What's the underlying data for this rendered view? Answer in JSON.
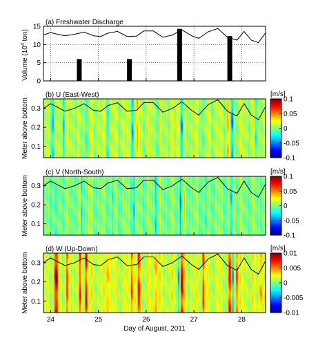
{
  "figure": {
    "xlabel": "Day of August, 2011",
    "xticks": [
      "24",
      "25",
      "26",
      "27",
      "28"
    ],
    "xlim": [
      23.85,
      28.5
    ]
  },
  "chart_data": [
    {
      "type": "bar",
      "title": "(a) Freshwater Discharge",
      "ylabel": "Volume (10",
      "ylabel_sup": "4",
      "ylabel_tail": " ton)",
      "ylim": [
        0,
        15
      ],
      "yticks": [
        "0",
        "5",
        "10",
        "15"
      ],
      "grid": true,
      "bars": [
        {
          "x": 24.6,
          "value": 6
        },
        {
          "x": 25.65,
          "value": 6
        },
        {
          "x": 26.7,
          "value": 14.3
        },
        {
          "x": 27.75,
          "value": 12.3
        }
      ],
      "overlay_line": {
        "x": [
          23.85,
          24.0,
          24.15,
          24.3,
          24.5,
          24.7,
          24.9,
          25.05,
          25.2,
          25.4,
          25.6,
          25.8,
          25.95,
          26.15,
          26.35,
          26.55,
          26.75,
          26.95,
          27.1,
          27.3,
          27.5,
          27.7,
          27.9,
          28.05,
          28.2,
          28.35,
          28.5
        ],
        "y": [
          12.6,
          13.3,
          12.8,
          12.4,
          12.8,
          13.4,
          12.4,
          12.2,
          13.1,
          13.6,
          12.2,
          12.3,
          13.7,
          13.7,
          12.0,
          12.6,
          14.0,
          12.4,
          11.7,
          13.5,
          14.4,
          12.0,
          11.2,
          13.6,
          11.2,
          10.5,
          13.2
        ]
      }
    },
    {
      "type": "heatmap",
      "title": "(b) U (East-West)",
      "ylabel": "Meter above bottom",
      "ylim": [
        0.04,
        0.35
      ],
      "yticks": [
        "0.1",
        "0.2",
        "0.3"
      ],
      "colorbar": {
        "unit": "[m/s]",
        "ticks": [
          "0.1",
          "0.05",
          "0",
          "-0.05",
          "-0.1"
        ],
        "range": [
          -0.1,
          0.1
        ]
      },
      "base": 0.01,
      "events": [
        {
          "x": 24.05,
          "a": -0.06,
          "w": 0.025
        },
        {
          "x": 24.28,
          "a": -0.045,
          "w": 0.02
        },
        {
          "x": 24.62,
          "a": -0.03,
          "w": 0.015
        },
        {
          "x": 24.75,
          "a": -0.04,
          "w": 0.02
        },
        {
          "x": 25.2,
          "a": -0.035,
          "w": 0.02
        },
        {
          "x": 25.72,
          "a": -0.06,
          "w": 0.02
        },
        {
          "x": 25.82,
          "a": 0.05,
          "w": 0.015
        },
        {
          "x": 26.25,
          "a": -0.03,
          "w": 0.02
        },
        {
          "x": 26.65,
          "a": 0.03,
          "w": 0.02
        },
        {
          "x": 26.75,
          "a": -0.07,
          "w": 0.025
        },
        {
          "x": 27.2,
          "a": -0.03,
          "w": 0.02
        },
        {
          "x": 27.7,
          "a": 0.04,
          "w": 0.02
        },
        {
          "x": 27.8,
          "a": -0.08,
          "w": 0.025
        },
        {
          "x": 28.3,
          "a": -0.04,
          "w": 0.02
        }
      ]
    },
    {
      "type": "heatmap",
      "title": "(c) V (North-South)",
      "ylabel": "Meter above bottom",
      "ylim": [
        0.04,
        0.35
      ],
      "yticks": [
        "0.1",
        "0.2",
        "0.3"
      ],
      "colorbar": {
        "unit": "[m/s]",
        "ticks": [
          "0.1",
          "0.05",
          "0",
          "-0.05",
          "-0.1"
        ],
        "range": [
          -0.1,
          0.1
        ]
      },
      "base": 0.0,
      "events": [
        {
          "x": 24.1,
          "a": -0.04,
          "w": 0.02
        },
        {
          "x": 24.65,
          "a": -0.03,
          "w": 0.015
        },
        {
          "x": 24.8,
          "a": 0.025,
          "w": 0.015
        },
        {
          "x": 25.3,
          "a": -0.025,
          "w": 0.02
        },
        {
          "x": 25.75,
          "a": -0.04,
          "w": 0.02
        },
        {
          "x": 26.2,
          "a": -0.025,
          "w": 0.02
        },
        {
          "x": 26.72,
          "a": -0.05,
          "w": 0.02
        },
        {
          "x": 26.8,
          "a": 0.03,
          "w": 0.015
        },
        {
          "x": 27.25,
          "a": -0.025,
          "w": 0.02
        },
        {
          "x": 27.78,
          "a": -0.05,
          "w": 0.02
        },
        {
          "x": 27.86,
          "a": 0.035,
          "w": 0.015
        }
      ]
    },
    {
      "type": "heatmap",
      "title": "(d) W (Up-Down)",
      "ylabel": "Meter above bottom",
      "ylim": [
        0.04,
        0.35
      ],
      "yticks": [
        "0.1",
        "0.2",
        "0.3"
      ],
      "colorbar": {
        "unit": "[m/s]",
        "ticks": [
          "0.01",
          "0.005",
          "0",
          "-0.005",
          "-0.01"
        ],
        "range": [
          -0.01,
          0.01
        ]
      },
      "base": 0.0015,
      "events": [
        {
          "x": 24.12,
          "a": 0.009,
          "w": 0.035
        },
        {
          "x": 24.35,
          "a": 0.004,
          "w": 0.03
        },
        {
          "x": 24.62,
          "a": 0.006,
          "w": 0.02
        },
        {
          "x": 24.75,
          "a": 0.008,
          "w": 0.025
        },
        {
          "x": 25.2,
          "a": 0.004,
          "w": 0.03
        },
        {
          "x": 25.7,
          "a": 0.007,
          "w": 0.025
        },
        {
          "x": 25.85,
          "a": 0.008,
          "w": 0.025
        },
        {
          "x": 26.2,
          "a": 0.004,
          "w": 0.03
        },
        {
          "x": 26.68,
          "a": -0.009,
          "w": 0.015
        },
        {
          "x": 26.75,
          "a": 0.009,
          "w": 0.03
        },
        {
          "x": 27.2,
          "a": 0.005,
          "w": 0.03
        },
        {
          "x": 27.75,
          "a": 0.008,
          "w": 0.025
        },
        {
          "x": 27.82,
          "a": -0.009,
          "w": 0.015
        },
        {
          "x": 27.9,
          "a": 0.008,
          "w": 0.02
        },
        {
          "x": 28.4,
          "a": 0.004,
          "w": 0.03
        }
      ]
    }
  ],
  "heatmap_overlay_line": {
    "x": [
      23.85,
      24.0,
      24.15,
      24.3,
      24.5,
      24.7,
      24.9,
      25.05,
      25.2,
      25.4,
      25.6,
      25.8,
      25.95,
      26.15,
      26.35,
      26.55,
      26.75,
      26.95,
      27.1,
      27.3,
      27.5,
      27.7,
      27.9,
      28.05,
      28.2,
      28.35,
      28.5
    ],
    "y": [
      0.3,
      0.325,
      0.305,
      0.285,
      0.3,
      0.325,
      0.29,
      0.285,
      0.315,
      0.33,
      0.285,
      0.29,
      0.33,
      0.33,
      0.28,
      0.3,
      0.335,
      0.29,
      0.265,
      0.32,
      0.345,
      0.285,
      0.26,
      0.325,
      0.265,
      0.24,
      0.31
    ]
  },
  "colormap": [
    "#00008f",
    "#0000ff",
    "#0080ff",
    "#00ffff",
    "#80ff80",
    "#ffff00",
    "#ff8000",
    "#ff0000",
    "#800000"
  ]
}
